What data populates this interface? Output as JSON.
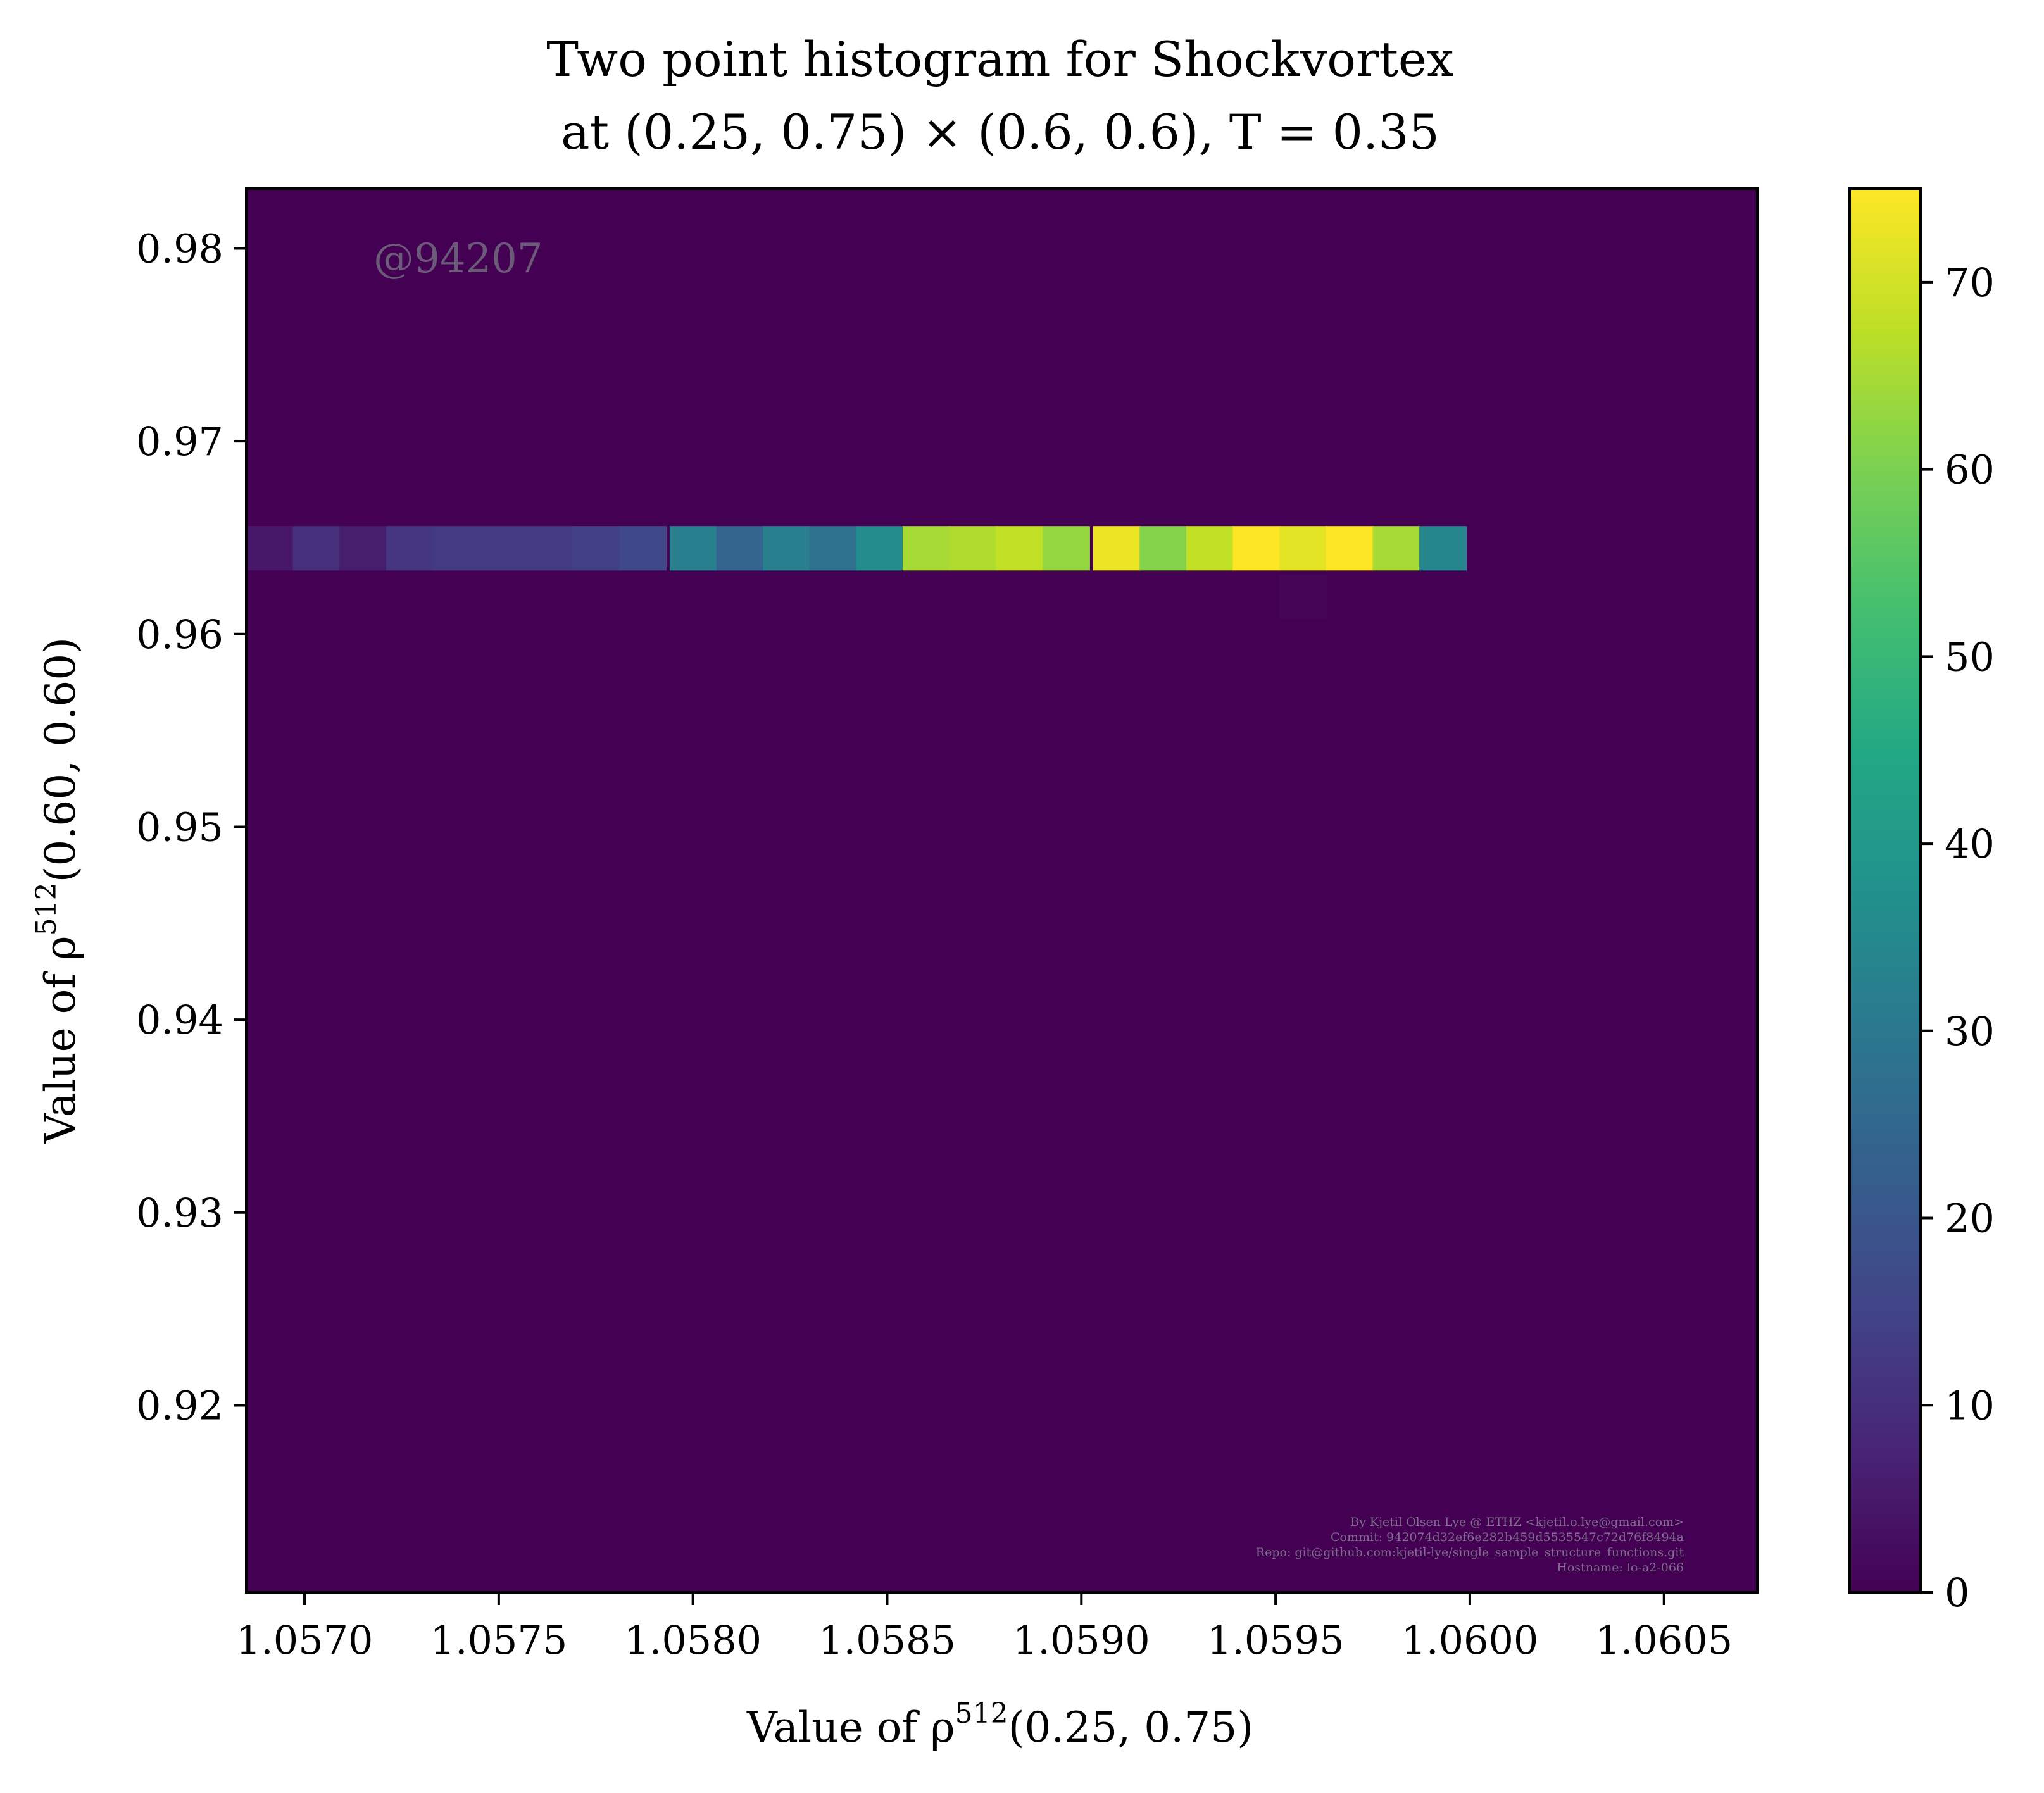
{
  "chart_data": {
    "type": "heatmap",
    "title_line1": "Two point histogram for Shockvortex",
    "title_line2": "at (0.25, 0.75) × (0.6, 0.6), T = 0.35",
    "xlabel": "Value of ρ",
    "xlabel_sup": "512",
    "xlabel_tail": "(0.25, 0.75)",
    "ylabel": "Value of ρ",
    "ylabel_sup": "512",
    "ylabel_tail": "(0.60, 0.60)",
    "xlim": [
      1.05685,
      1.06074
    ],
    "ylim": [
      0.9103,
      0.9831
    ],
    "x_ticks": [
      {
        "value": 1.057,
        "label": "1.0570"
      },
      {
        "value": 1.0575,
        "label": "1.0575"
      },
      {
        "value": 1.058,
        "label": "1.0580"
      },
      {
        "value": 1.0585,
        "label": "1.0585"
      },
      {
        "value": 1.059,
        "label": "1.0590"
      },
      {
        "value": 1.0595,
        "label": "1.0595"
      },
      {
        "value": 1.06,
        "label": "1.0600"
      },
      {
        "value": 1.0605,
        "label": "1.0605"
      }
    ],
    "y_ticks": [
      {
        "value": 0.92,
        "label": "0.92"
      },
      {
        "value": 0.93,
        "label": "0.93"
      },
      {
        "value": 0.94,
        "label": "0.94"
      },
      {
        "value": 0.95,
        "label": "0.95"
      },
      {
        "value": 0.96,
        "label": "0.96"
      },
      {
        "value": 0.97,
        "label": "0.97"
      },
      {
        "value": 0.98,
        "label": "0.98"
      }
    ],
    "colorbar": {
      "min": 0,
      "max": 75,
      "ticks": [
        {
          "value": 0,
          "label": "0"
        },
        {
          "value": 10,
          "label": "10"
        },
        {
          "value": 20,
          "label": "20"
        },
        {
          "value": 30,
          "label": "30"
        },
        {
          "value": 40,
          "label": "40"
        },
        {
          "value": 50,
          "label": "50"
        },
        {
          "value": 60,
          "label": "60"
        },
        {
          "value": 70,
          "label": "70"
        }
      ]
    },
    "background_value": 0,
    "bin_width_x": 0.000121,
    "bins": [
      {
        "x0": 1.05685,
        "y0": 0.9633,
        "y1": 0.9656,
        "count": 5
      },
      {
        "x0": 1.05697,
        "y0": 0.9633,
        "y1": 0.9656,
        "count": 10
      },
      {
        "x0": 1.05709,
        "y0": 0.9633,
        "y1": 0.9656,
        "count": 6
      },
      {
        "x0": 1.05721,
        "y0": 0.9633,
        "y1": 0.9656,
        "count": 12
      },
      {
        "x0": 1.05733,
        "y0": 0.9633,
        "y1": 0.9656,
        "count": 13
      },
      {
        "x0": 1.05745,
        "y0": 0.9633,
        "y1": 0.9656,
        "count": 13
      },
      {
        "x0": 1.05757,
        "y0": 0.9633,
        "y1": 0.9656,
        "count": 13
      },
      {
        "x0": 1.05769,
        "y0": 0.9633,
        "y1": 0.9656,
        "count": 14
      },
      {
        "x0": 1.05781,
        "y0": 0.9633,
        "y1": 0.9656,
        "count": 16
      },
      {
        "x0": 1.05794,
        "y0": 0.9633,
        "y1": 0.9656,
        "count": 32
      },
      {
        "x0": 1.05806,
        "y0": 0.9633,
        "y1": 0.9656,
        "count": 24
      },
      {
        "x0": 1.05818,
        "y0": 0.9633,
        "y1": 0.9656,
        "count": 32
      },
      {
        "x0": 1.0583,
        "y0": 0.9633,
        "y1": 0.9656,
        "count": 28
      },
      {
        "x0": 1.05842,
        "y0": 0.9633,
        "y1": 0.9656,
        "count": 36
      },
      {
        "x0": 1.05854,
        "y0": 0.9633,
        "y1": 0.9656,
        "count": 65
      },
      {
        "x0": 1.05866,
        "y0": 0.9633,
        "y1": 0.9656,
        "count": 66
      },
      {
        "x0": 1.05878,
        "y0": 0.9633,
        "y1": 0.9656,
        "count": 68
      },
      {
        "x0": 1.0589,
        "y0": 0.9633,
        "y1": 0.9656,
        "count": 63
      },
      {
        "x0": 1.05903,
        "y0": 0.9633,
        "y1": 0.9656,
        "count": 73
      },
      {
        "x0": 1.05915,
        "y0": 0.9633,
        "y1": 0.9656,
        "count": 61
      },
      {
        "x0": 1.05927,
        "y0": 0.9633,
        "y1": 0.9656,
        "count": 68
      },
      {
        "x0": 1.05939,
        "y0": 0.9633,
        "y1": 0.9656,
        "count": 75
      },
      {
        "x0": 1.05951,
        "y0": 0.9633,
        "y1": 0.9656,
        "count": 72
      },
      {
        "x0": 1.05963,
        "y0": 0.9633,
        "y1": 0.9656,
        "count": 75
      },
      {
        "x0": 1.05975,
        "y0": 0.9633,
        "y1": 0.9656,
        "count": 65
      },
      {
        "x0": 1.05987,
        "y0": 0.9633,
        "y1": 0.9656,
        "count": 34
      },
      {
        "x0": 1.05951,
        "y0": 0.9608,
        "y1": 0.9631,
        "count": 1
      }
    ],
    "watermark": "@94207",
    "footer_lines": [
      "By Kjetil Olsen Lye @ ETHZ <kjetil.o.lye@gmail.com>",
      "Commit: 942074d32ef6e282b459d5535547c72d76f8494a",
      "Repo: git@github.com:kjetil-lye/single_sample_structure_functions.git",
      "Hostname: lo-a2-066"
    ],
    "colormap": "viridis"
  }
}
